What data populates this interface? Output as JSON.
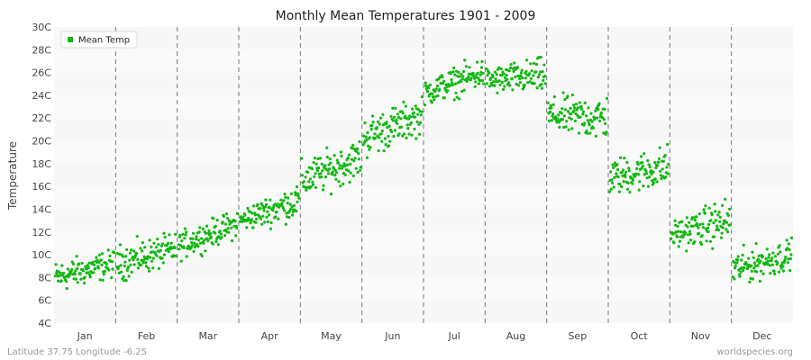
{
  "chart_data": {
    "type": "scatter",
    "title": "Monthly Mean Temperatures 1901 - 2009",
    "ylabel": "Temperature",
    "xlabel": "",
    "categories": [
      "Jan",
      "Feb",
      "Mar",
      "Apr",
      "May",
      "Jun",
      "Jul",
      "Aug",
      "Sep",
      "Oct",
      "Nov",
      "Dec"
    ],
    "y_ticks": [
      "4C",
      "6C",
      "8C",
      "10C",
      "12C",
      "14C",
      "16C",
      "18C",
      "20C",
      "22C",
      "24C",
      "26C",
      "28C",
      "30C"
    ],
    "ylim": [
      4,
      30
    ],
    "grid": "alternating horizontal bands, dashed vertical month separators",
    "legend": {
      "placement": "top-left"
    },
    "series": [
      {
        "name": "Mean Temp",
        "color": "#11b811",
        "points_per_month": 109,
        "monthly_ranges": [
          {
            "month": "Jan",
            "start_range": [
              6,
              10
            ],
            "end_range": [
              7.5,
              11
            ]
          },
          {
            "month": "Feb",
            "start_range": [
              7,
              11.5
            ],
            "end_range": [
              8.5,
              12.5
            ]
          },
          {
            "month": "Mar",
            "start_range": [
              9,
              12.5
            ],
            "end_range": [
              11,
              14.5
            ]
          },
          {
            "month": "Apr",
            "start_range": [
              11.5,
              14.5
            ],
            "end_range": [
              12.5,
              17
            ]
          },
          {
            "month": "May",
            "start_range": [
              14,
              19
            ],
            "end_range": [
              16,
              21
            ]
          },
          {
            "month": "Jun",
            "start_range": [
              17.5,
              23
            ],
            "end_range": [
              20,
              24.5
            ]
          },
          {
            "month": "Jul",
            "start_range": [
              22.5,
              26
            ],
            "end_range": [
              24,
              28
            ]
          },
          {
            "month": "Aug",
            "start_range": [
              23.5,
              27
            ],
            "end_range": [
              23.5,
              28
            ]
          },
          {
            "month": "Sep",
            "start_range": [
              20,
              24.5
            ],
            "end_range": [
              19,
              25
            ]
          },
          {
            "month": "Oct",
            "start_range": [
              14.5,
              19
            ],
            "end_range": [
              15,
              20.5
            ]
          },
          {
            "month": "Nov",
            "start_range": [
              10,
              13.5
            ],
            "end_range": [
              10,
              16
            ]
          },
          {
            "month": "Dec",
            "start_range": [
              6.5,
              11
            ],
            "end_range": [
              8,
              12
            ]
          }
        ]
      }
    ]
  },
  "footer": {
    "location": "Latitude 37.75 Longitude -6.25",
    "source": "worldspecies.org"
  }
}
